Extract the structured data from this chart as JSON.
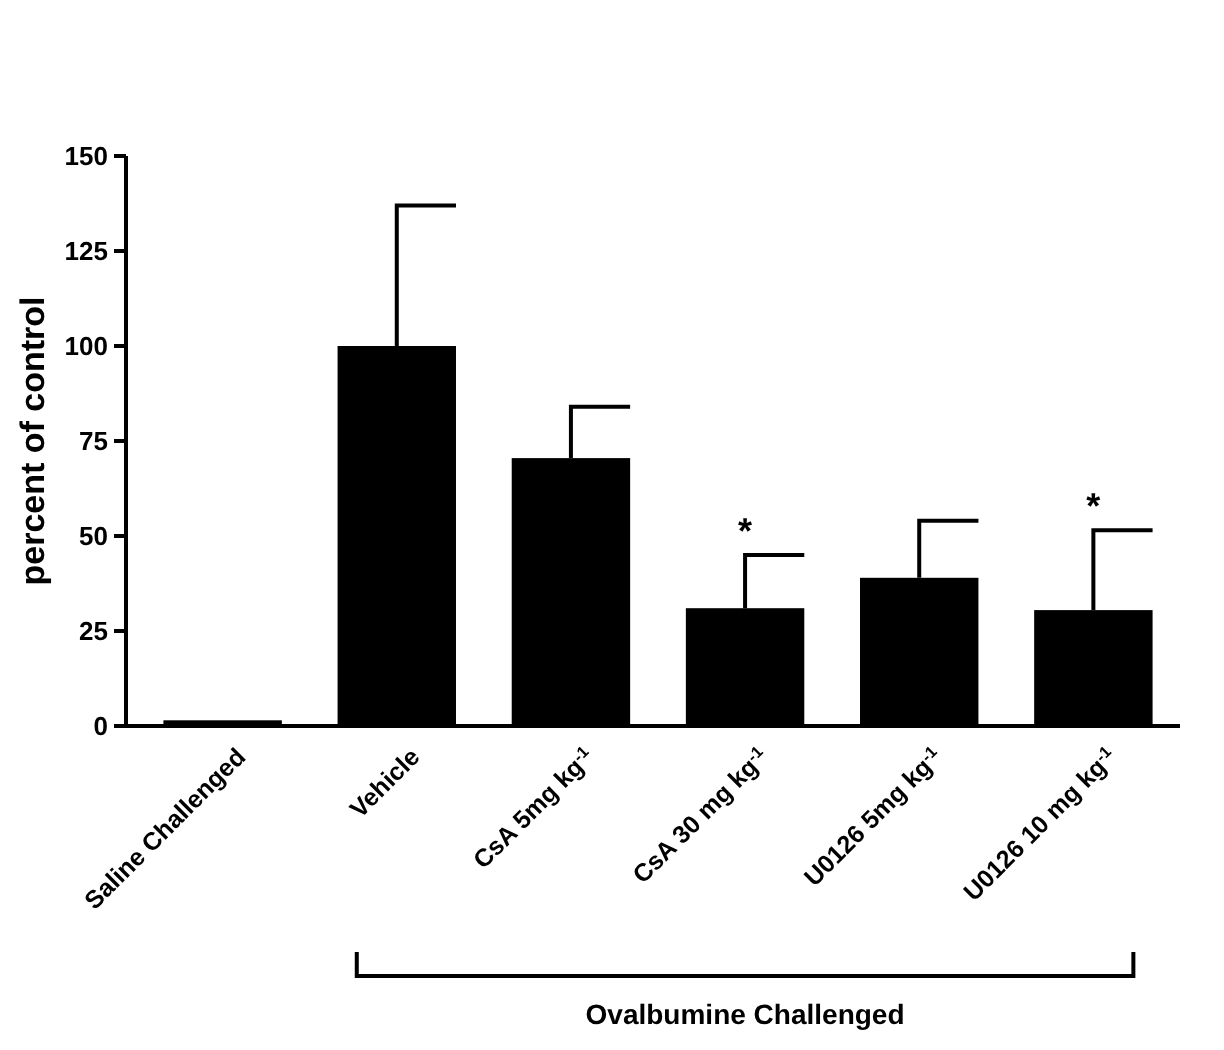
{
  "chart_data": {
    "type": "bar",
    "ylabel": "percent of control",
    "categories": [
      "Saline Challenged",
      "Vehicle",
      "CsA 5mg kg$^{-1}$",
      "CsA 30 mg kg$^{-1}$",
      "U0126 5mg kg$^{-1}$",
      "U0126 10 mg kg$^{-1}$"
    ],
    "values": [
      1.5,
      100,
      70.5,
      31,
      39,
      30.5
    ],
    "errors": [
      null,
      [
        100,
        137
      ],
      [
        70.5,
        84
      ],
      [
        31,
        45
      ],
      [
        39,
        54
      ],
      [
        30.5,
        51.5
      ]
    ],
    "color": "#000000",
    "ylim": [
      0,
      150
    ],
    "yticks": [
      0,
      25,
      50,
      75,
      100,
      125,
      150
    ],
    "grid": false,
    "value_labels": [
      null,
      null,
      null,
      "*",
      null,
      "*"
    ],
    "annotations": [
      "Ovalbumine Challenged"
    ]
  }
}
